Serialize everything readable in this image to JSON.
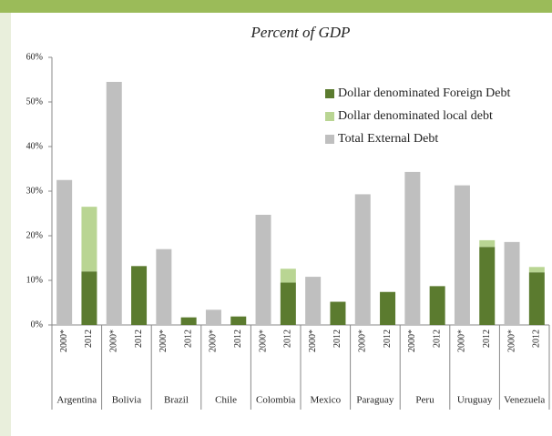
{
  "chart_data": {
    "type": "stacked_bar",
    "title": "Percent of GDP",
    "categories": [
      "2000*",
      "2012",
      "2000*",
      "2012",
      "2000*",
      "2012",
      "2000*",
      "2012",
      "2000*",
      "2012",
      "2000*",
      "2012",
      "2000*",
      "2012",
      "2000*",
      "2012",
      "2000*",
      "2012",
      "2000*",
      "2012"
    ],
    "groups": [
      "Argentina",
      "Bolivia",
      "Brazil",
      "Chile",
      "Colombia",
      "Mexico",
      "Paraguay",
      "Peru",
      "Uruguay",
      "Venezuela"
    ],
    "series": [
      {
        "name": "Dollar denominated Foreign Debt",
        "color": "#5b7b2f",
        "values": [
          null,
          12,
          null,
          13.2,
          null,
          1.7,
          null,
          1.9,
          null,
          9.5,
          null,
          5.2,
          null,
          7.4,
          null,
          8.7,
          null,
          17.5,
          null,
          11.8
        ]
      },
      {
        "name": "Dollar denominated local debt",
        "color": "#b9d593",
        "values": [
          null,
          14.5,
          null,
          null,
          null,
          null,
          null,
          null,
          null,
          3.1,
          null,
          null,
          null,
          null,
          null,
          null,
          null,
          1.5,
          null,
          1.2
        ]
      },
      {
        "name": "Total External Debt",
        "color": "#bfbfbf",
        "values": [
          32.5,
          null,
          54.5,
          null,
          17,
          null,
          3.4,
          null,
          24.7,
          null,
          10.8,
          null,
          29.3,
          null,
          34.3,
          null,
          31.3,
          null,
          18.6,
          null
        ]
      }
    ],
    "ylim": [
      0,
      60
    ],
    "yticks": [
      {
        "value": 0,
        "label": "0%"
      },
      {
        "value": 10,
        "label": "10%"
      },
      {
        "value": 20,
        "label": "20%"
      },
      {
        "value": 30,
        "label": "30%"
      },
      {
        "value": 40,
        "label": "40%"
      },
      {
        "value": 50,
        "label": "50%"
      },
      {
        "value": 60,
        "label": "60%"
      }
    ],
    "legend": "upper right"
  }
}
